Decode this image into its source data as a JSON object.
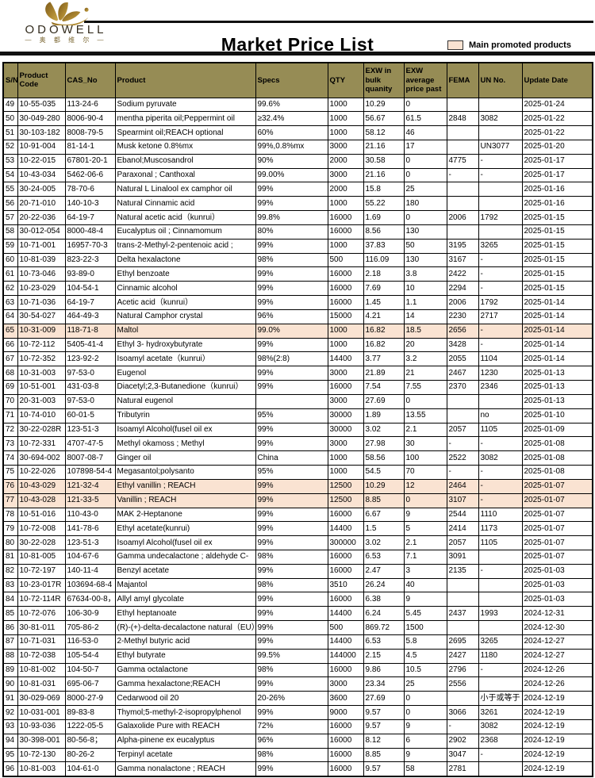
{
  "brand": {
    "name": "ODOWELL",
    "chinese": "— 奥 都 维 尔 —",
    "logo_icon": "butterfly-orchid-gold"
  },
  "title": "Market Price List",
  "legend": {
    "label": "Main promoted products"
  },
  "colors": {
    "header_bg": "#968C55",
    "promoted_bg": "#FAE3D2",
    "rule": "#111111"
  },
  "table": {
    "columns": [
      "S/N",
      "Product Code",
      "CAS_No",
      "Product",
      "Specs",
      "QTY",
      "EXW in bulk quanity",
      "EXW average price past",
      "FEMA",
      "UN No.",
      "Update Date"
    ],
    "column_keys": [
      "sn",
      "product-code",
      "cas-no",
      "product",
      "specs",
      "qty",
      "exw-bulk",
      "exw-avg",
      "fema",
      "un-no",
      "update-date"
    ],
    "promoted_sn": [
      "65",
      "76",
      "77"
    ],
    "rows": [
      [
        "49",
        "10-55-035",
        "113-24-6",
        "Sodium pyruvate",
        "99.6%",
        "1000",
        "10.29",
        "0",
        "",
        "",
        "2025-01-24"
      ],
      [
        "50",
        "30-049-280",
        "8006-90-4",
        "mentha piperita oil;Peppermint oil",
        "≥32.4%",
        "1000",
        "56.67",
        "61.5",
        "2848",
        "3082",
        "2025-01-22"
      ],
      [
        "51",
        "30-103-182",
        "8008-79-5",
        "Spearmint oil;REACH optional",
        "60%",
        "1000",
        "58.12",
        "46",
        "",
        "",
        "2025-01-22"
      ],
      [
        "52",
        "10-91-004",
        "81-14-1",
        "Musk ketone 0.8%mx",
        "99%,0.8%mx",
        "3000",
        "21.16",
        "17",
        "",
        "UN3077",
        "2025-01-20"
      ],
      [
        "53",
        "10-22-015",
        "67801-20-1",
        "Ebanol;Muscosandrol",
        "90%",
        "2000",
        "30.58",
        "0",
        "4775",
        "-",
        "2025-01-17"
      ],
      [
        "54",
        "10-43-034",
        "5462-06-6",
        "Paraxonal ; Canthoxal",
        "99.00%",
        "3000",
        "21.16",
        "0",
        "-",
        "-",
        "2025-01-17"
      ],
      [
        "55",
        "30-24-005",
        "78-70-6",
        "Natural L Linalool ex camphor oil",
        "99%",
        "2000",
        "15.8",
        "25",
        "",
        "",
        "2025-01-16"
      ],
      [
        "56",
        "20-71-010",
        "140-10-3",
        "Natural Cinnamic acid",
        "99%",
        "1000",
        "55.22",
        "180",
        "",
        "",
        "2025-01-16"
      ],
      [
        "57",
        "20-22-036",
        "64-19-7",
        "Natural acetic acid（kunrui）",
        "99.8%",
        "16000",
        "1.69",
        "0",
        "2006",
        "1792",
        "2025-01-15"
      ],
      [
        "58",
        "30-012-054",
        "8000-48-4",
        "Eucalyptus oil ; Cinnamomum",
        "80%",
        "16000",
        "8.56",
        "130",
        "",
        "",
        "2025-01-15"
      ],
      [
        "59",
        "10-71-001",
        "16957-70-3",
        "trans-2-Methyl-2-pentenoic acid ;",
        "99%",
        "1000",
        "37.83",
        "50",
        "3195",
        "3265",
        "2025-01-15"
      ],
      [
        "60",
        "10-81-039",
        "823-22-3",
        "Delta hexalactone",
        "98%",
        "500",
        "116.09",
        "130",
        "3167",
        "-",
        "2025-01-15"
      ],
      [
        "61",
        "10-73-046",
        "93-89-0",
        "Ethyl benzoate",
        "99%",
        "16000",
        "2.18",
        "3.8",
        "2422",
        "-",
        "2025-01-15"
      ],
      [
        "62",
        "10-23-029",
        "104-54-1",
        "Cinnamic alcohol",
        "99%",
        "16000",
        "7.69",
        "10",
        "2294",
        "-",
        "2025-01-15"
      ],
      [
        "63",
        "10-71-036",
        "64-19-7",
        "Acetic acid（kunrui）",
        "99%",
        "16000",
        "1.45",
        "1.1",
        "2006",
        "1792",
        "2025-01-14"
      ],
      [
        "64",
        "30-54-027",
        "464-49-3",
        "Natural Camphor crystal",
        "96%",
        "15000",
        "4.21",
        "14",
        "2230",
        "2717",
        "2025-01-14"
      ],
      [
        "65",
        "10-31-009",
        "118-71-8",
        "Maltol",
        "99.0%",
        "1000",
        "16.82",
        "18.5",
        "2656",
        "-",
        "2025-01-14"
      ],
      [
        "66",
        "10-72-112",
        "5405-41-4",
        "Ethyl 3- hydroxybutyrate",
        "99%",
        "1000",
        "16.82",
        "20",
        "3428",
        "-",
        "2025-01-14"
      ],
      [
        "67",
        "10-72-352",
        "123-92-2",
        "Isoamyl acetate（kunrui）",
        "98%(2:8)",
        "14400",
        "3.77",
        "3.2",
        "2055",
        "1104",
        "2025-01-14"
      ],
      [
        "68",
        "10-31-003",
        "97-53-0",
        "Eugenol",
        "99%",
        "3000",
        "21.89",
        "21",
        "2467",
        "1230",
        "2025-01-13"
      ],
      [
        "69",
        "10-51-001",
        "431-03-8",
        "Diacetyl;2,3-Butanedione（kunrui）",
        "99%",
        "16000",
        "7.54",
        "7.55",
        "2370",
        "2346",
        "2025-01-13"
      ],
      [
        "70",
        "20-31-003",
        "97-53-0",
        "Natural eugenol",
        "",
        "3000",
        "27.69",
        "0",
        "",
        "",
        "2025-01-13"
      ],
      [
        "71",
        "10-74-010",
        "60-01-5",
        "Tributyrin",
        "95%",
        "30000",
        "1.89",
        "13.55",
        "",
        "no",
        "2025-01-10"
      ],
      [
        "72",
        "30-22-028R",
        "123-51-3",
        "Isoamyl Alcohol(fusel oil ex",
        "99%",
        "30000",
        "3.02",
        "2.1",
        "2057",
        "1105",
        "2025-01-09"
      ],
      [
        "73",
        "10-72-331",
        "4707-47-5",
        "Methyl okamoss ; Methyl",
        "99%",
        "3000",
        "27.98",
        "30",
        "-",
        "-",
        "2025-01-08"
      ],
      [
        "74",
        "30-694-002",
        "8007-08-7",
        "Ginger oil",
        "China",
        "1000",
        "58.56",
        "100",
        "2522",
        "3082",
        "2025-01-08"
      ],
      [
        "75",
        "10-22-026",
        "107898-54-4",
        "Megasantol;polysanto",
        "95%",
        "1000",
        "54.5",
        "70",
        "-",
        "-",
        "2025-01-08"
      ],
      [
        "76",
        "10-43-029",
        "121-32-4",
        "Ethyl vanillin ; REACH",
        "99%",
        "12500",
        "10.29",
        "12",
        "2464",
        "-",
        "2025-01-07"
      ],
      [
        "77",
        "10-43-028",
        "121-33-5",
        "Vanillin ; REACH",
        "99%",
        "12500",
        "8.85",
        "0",
        "3107",
        "-",
        "2025-01-07"
      ],
      [
        "78",
        "10-51-016",
        "110-43-0",
        "MAK 2-Heptanone",
        "99%",
        "16000",
        "6.67",
        "9",
        "2544",
        "1110",
        "2025-01-07"
      ],
      [
        "79",
        "10-72-008",
        "141-78-6",
        "Ethyl acetate(kunrui)",
        "99%",
        "14400",
        "1.5",
        "5",
        "2414",
        "1173",
        "2025-01-07"
      ],
      [
        "80",
        "30-22-028",
        "123-51-3",
        "Isoamyl Alcohol(fusel oil ex",
        "99%",
        "300000",
        "3.02",
        "2.1",
        "2057",
        "1105",
        "2025-01-07"
      ],
      [
        "81",
        "10-81-005",
        "104-67-6",
        "Gamma undecalactone ; aldehyde C-",
        "98%",
        "16000",
        "6.53",
        "7.1",
        "3091",
        "",
        "2025-01-07"
      ],
      [
        "82",
        "10-72-197",
        "140-11-4",
        "Benzyl acetate",
        "99%",
        "16000",
        "2.47",
        "3",
        "2135",
        "-",
        "2025-01-03"
      ],
      [
        "83",
        "10-23-017R",
        "103694-68-4",
        "Majantol",
        "98%",
        "3510",
        "26.24",
        "40",
        "",
        "",
        "2025-01-03"
      ],
      [
        "84",
        "10-72-114R",
        "67634-00-8，",
        "Allyl amyl glycolate",
        "99%",
        "16000",
        "6.38",
        "9",
        "",
        "",
        "2025-01-03"
      ],
      [
        "85",
        "10-72-076",
        "106-30-9",
        "Ethyl heptanoate",
        "99%",
        "14400",
        "6.24",
        "5.45",
        "2437",
        "1993",
        "2024-12-31"
      ],
      [
        "86",
        "30-81-011",
        "705-86-2",
        "(R)-(+)-delta-decalactone natural（EU）",
        "99%",
        "500",
        "869.72",
        "1500",
        "",
        "",
        "2024-12-30"
      ],
      [
        "87",
        "10-71-031",
        "116-53-0",
        "2-Methyl butyric acid",
        "99%",
        "14400",
        "6.53",
        "5.8",
        "2695",
        "3265",
        "2024-12-27"
      ],
      [
        "88",
        "10-72-038",
        "105-54-4",
        "Ethyl butyrate",
        "99.5%",
        "144000",
        "2.15",
        "4.5",
        "2427",
        "1180",
        "2024-12-27"
      ],
      [
        "89",
        "10-81-002",
        "104-50-7",
        "Gamma octalactone",
        "98%",
        "16000",
        "9.86",
        "10.5",
        "2796",
        "-",
        "2024-12-26"
      ],
      [
        "90",
        "10-81-031",
        "695-06-7",
        "Gamma hexalactone;REACH",
        "99%",
        "3000",
        "23.34",
        "25",
        "2556",
        "",
        "2024-12-26"
      ],
      [
        "91",
        "30-029-069",
        "8000-27-9",
        "Cedarwood oil 20",
        "20-26%",
        "3600",
        "27.69",
        "0",
        "",
        "小于或等于",
        "2024-12-19"
      ],
      [
        "92",
        "10-031-001",
        "89-83-8",
        "Thymol;5-methyl-2-isopropylphenol",
        "99%",
        "9000",
        "9.57",
        "0",
        "3066",
        "3261",
        "2024-12-19"
      ],
      [
        "93",
        "10-93-036",
        "1222-05-5",
        "Galaxolide Pure with REACH",
        "72%",
        "16000",
        "9.57",
        "9",
        "-",
        "3082",
        "2024-12-19"
      ],
      [
        "94",
        "30-398-001",
        "80-56-8；",
        "Alpha-pinene ex eucalyptus",
        "96%",
        "16000",
        "8.12",
        "6",
        "2902",
        "2368",
        "2024-12-19"
      ],
      [
        "95",
        "10-72-130",
        "80-26-2",
        "Terpinyl acetate",
        "98%",
        "16000",
        "8.85",
        "9",
        "3047",
        "-",
        "2024-12-19"
      ],
      [
        "96",
        "10-81-003",
        "104-61-0",
        "Gamma nonalactone ; REACH",
        "99%",
        "16000",
        "9.57",
        "58",
        "2781",
        "",
        "2024-12-19"
      ]
    ]
  }
}
